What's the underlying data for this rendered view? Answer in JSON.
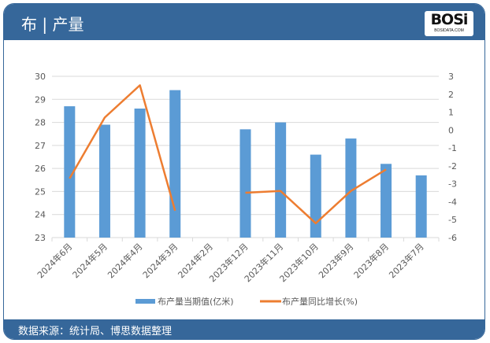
{
  "header": {
    "title": "布 | 产量",
    "logo_text": "BOSi",
    "logo_sub": "BOSIDATA.COM"
  },
  "footer": {
    "source": "数据来源：统计局、博思数据整理"
  },
  "colors": {
    "bar": "#5b9bd5",
    "line": "#ed7d31",
    "header": "#36679a"
  },
  "chart_data": {
    "type": "bar+line",
    "categories": [
      "2024年6月",
      "2024年5月",
      "2024年4月",
      "2024年3月",
      "2024年2月",
      "2023年12月",
      "2023年11月",
      "2023年10月",
      "2023年9月",
      "2023年8月",
      "2023年7月"
    ],
    "series": [
      {
        "name": "布产量当期值(亿米)",
        "type": "bar",
        "axis": "left",
        "values": [
          28.7,
          27.9,
          28.6,
          29.4,
          null,
          27.7,
          28.0,
          26.6,
          27.3,
          26.2,
          25.7
        ]
      },
      {
        "name": "布产量同比增长(%)",
        "type": "line",
        "axis": "right",
        "values": [
          -2.7,
          0.7,
          2.5,
          -4.5,
          null,
          -3.5,
          -3.4,
          -5.2,
          -3.4,
          -2.2,
          null
        ]
      }
    ],
    "ylim_left": [
      23,
      30
    ],
    "yticks_left": [
      "23",
      "24",
      "25",
      "26",
      "27",
      "28",
      "29",
      "30"
    ],
    "ylim_right": [
      -6,
      3
    ],
    "yticks_right": [
      "-6",
      "-5",
      "-4",
      "-3",
      "-2",
      "-1",
      "0",
      "1",
      "2",
      "3"
    ],
    "grid": true,
    "legend": "bottom"
  }
}
